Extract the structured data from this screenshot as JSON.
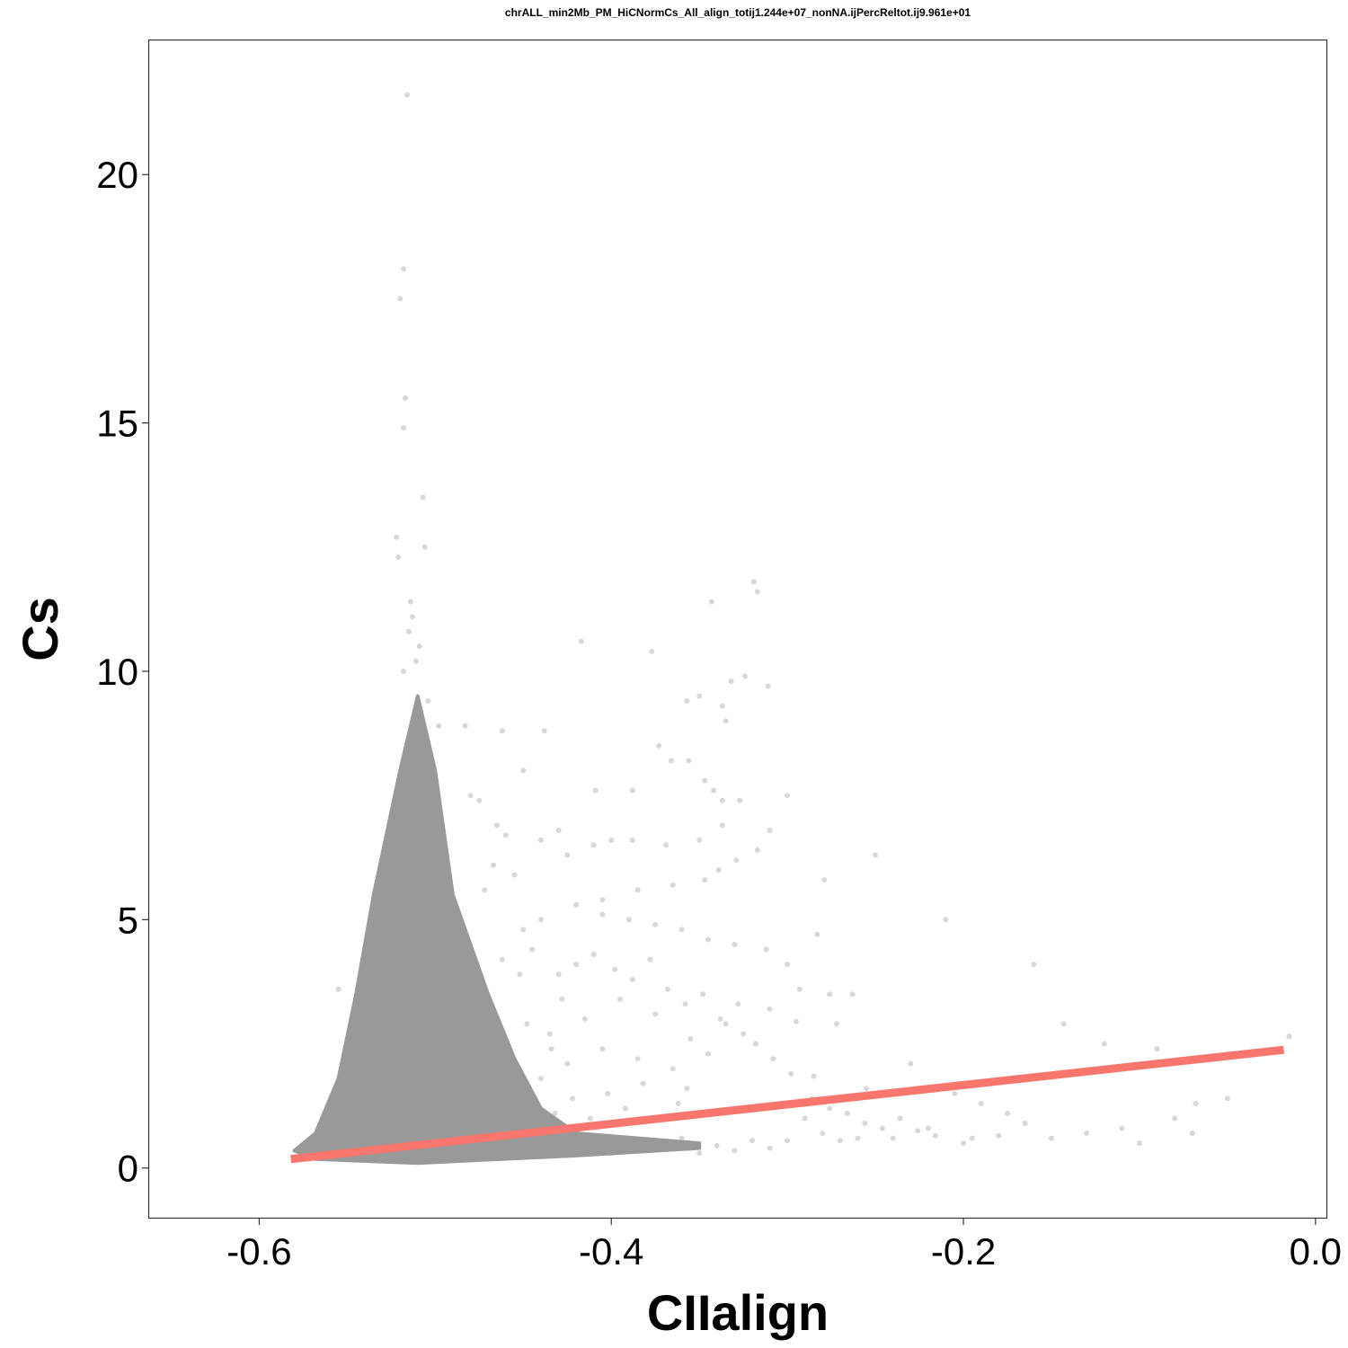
{
  "chart_data": {
    "type": "scatter",
    "title": "chrALL_min2Mb_PM_HiCNormCs_All_align_totij1.244e+07_nonNA.ijPercReltot.ij9.961e+01",
    "xlabel": "CIIalign",
    "ylabel": "Cs",
    "xlim": [
      -0.6625,
      0.0062
    ],
    "ylim": [
      -1.0,
      22.7
    ],
    "x_ticks": [
      -0.6,
      -0.4,
      -0.2,
      0.0
    ],
    "x_tick_labels": [
      "-0.6",
      "-0.4",
      "-0.2",
      "0.0"
    ],
    "y_ticks": [
      0,
      5,
      10,
      15,
      20
    ],
    "y_tick_labels": [
      "0",
      "5",
      "10",
      "15",
      "20"
    ],
    "grid": false,
    "legend": "none",
    "point_color": "#999999",
    "line_color": "#F8766D",
    "dense_cluster": {
      "x_center": -0.51,
      "outline": [
        [
          -0.568,
          0.18
        ],
        [
          -0.51,
          0.1
        ],
        [
          -0.42,
          0.25
        ],
        [
          -0.35,
          0.4
        ],
        [
          -0.35,
          0.5
        ],
        [
          -0.42,
          0.7
        ],
        [
          -0.44,
          1.2
        ],
        [
          -0.455,
          2.2
        ],
        [
          -0.47,
          3.5
        ],
        [
          -0.49,
          5.5
        ],
        [
          -0.5,
          8.0
        ],
        [
          -0.51,
          9.5
        ],
        [
          -0.52,
          8.0
        ],
        [
          -0.535,
          5.5
        ],
        [
          -0.545,
          3.5
        ],
        [
          -0.555,
          1.8
        ],
        [
          -0.568,
          0.7
        ],
        [
          -0.58,
          0.35
        ]
      ]
    },
    "series": [
      {
        "type": "scatter",
        "points": [
          [
            -0.516,
            21.6
          ],
          [
            -0.518,
            18.1
          ],
          [
            -0.52,
            17.5
          ],
          [
            -0.517,
            15.5
          ],
          [
            -0.518,
            14.9
          ],
          [
            -0.507,
            13.5
          ],
          [
            -0.522,
            12.7
          ],
          [
            -0.521,
            12.3
          ],
          [
            -0.506,
            12.5
          ],
          [
            -0.514,
            11.4
          ],
          [
            -0.513,
            11.1
          ],
          [
            -0.515,
            10.8
          ],
          [
            -0.509,
            10.5
          ],
          [
            -0.511,
            10.2
          ],
          [
            -0.518,
            10.0
          ],
          [
            -0.504,
            9.4
          ],
          [
            -0.498,
            8.9
          ],
          [
            -0.483,
            8.9
          ],
          [
            -0.462,
            8.8
          ],
          [
            -0.438,
            8.8
          ],
          [
            -0.45,
            8.0
          ],
          [
            -0.48,
            7.5
          ],
          [
            -0.475,
            7.4
          ],
          [
            -0.465,
            6.9
          ],
          [
            -0.46,
            6.7
          ],
          [
            -0.44,
            6.6
          ],
          [
            -0.43,
            6.8
          ],
          [
            -0.417,
            10.6
          ],
          [
            -0.377,
            10.4
          ],
          [
            -0.343,
            11.4
          ],
          [
            -0.319,
            11.8
          ],
          [
            -0.317,
            11.6
          ],
          [
            -0.311,
            9.7
          ],
          [
            -0.324,
            9.9
          ],
          [
            -0.332,
            9.8
          ],
          [
            -0.35,
            9.5
          ],
          [
            -0.337,
            9.3
          ],
          [
            -0.335,
            9.0
          ],
          [
            -0.357,
            9.4
          ],
          [
            -0.373,
            8.5
          ],
          [
            -0.366,
            8.2
          ],
          [
            -0.356,
            8.2
          ],
          [
            -0.347,
            7.8
          ],
          [
            -0.342,
            7.6
          ],
          [
            -0.337,
            7.4
          ],
          [
            -0.327,
            7.4
          ],
          [
            -0.337,
            6.9
          ],
          [
            -0.35,
            6.6
          ],
          [
            -0.369,
            6.5
          ],
          [
            -0.388,
            6.6
          ],
          [
            -0.4,
            6.6
          ],
          [
            -0.41,
            6.5
          ],
          [
            -0.425,
            6.3
          ],
          [
            -0.409,
            7.6
          ],
          [
            -0.388,
            7.6
          ],
          [
            -0.3,
            7.5
          ],
          [
            -0.31,
            6.8
          ],
          [
            -0.317,
            6.4
          ],
          [
            -0.329,
            6.2
          ],
          [
            -0.339,
            6.0
          ],
          [
            -0.347,
            5.8
          ],
          [
            -0.365,
            5.7
          ],
          [
            -0.385,
            5.6
          ],
          [
            -0.405,
            5.4
          ],
          [
            -0.42,
            5.3
          ],
          [
            -0.44,
            5.0
          ],
          [
            -0.45,
            4.8
          ],
          [
            -0.405,
            5.1
          ],
          [
            -0.39,
            5.0
          ],
          [
            -0.375,
            4.9
          ],
          [
            -0.36,
            4.8
          ],
          [
            -0.345,
            4.6
          ],
          [
            -0.33,
            4.5
          ],
          [
            -0.312,
            4.4
          ],
          [
            -0.3,
            4.1
          ],
          [
            -0.293,
            3.6
          ],
          [
            -0.283,
            4.7
          ],
          [
            -0.276,
            3.5
          ],
          [
            -0.272,
            2.9
          ],
          [
            -0.263,
            3.5
          ],
          [
            -0.279,
            5.8
          ],
          [
            -0.25,
            6.3
          ],
          [
            -0.21,
            5.0
          ],
          [
            -0.16,
            4.1
          ],
          [
            -0.143,
            2.9
          ],
          [
            -0.12,
            2.5
          ],
          [
            -0.09,
            2.4
          ],
          [
            -0.068,
            1.3
          ],
          [
            -0.07,
            0.7
          ],
          [
            -0.08,
            1.0
          ],
          [
            -0.1,
            0.5
          ],
          [
            -0.11,
            0.8
          ],
          [
            -0.13,
            0.7
          ],
          [
            -0.15,
            0.6
          ],
          [
            -0.165,
            0.9
          ],
          [
            -0.18,
            0.65
          ],
          [
            -0.195,
            0.6
          ],
          [
            -0.2,
            0.5
          ],
          [
            -0.22,
            0.8
          ],
          [
            -0.24,
            0.6
          ],
          [
            -0.26,
            0.6
          ],
          [
            -0.27,
            0.55
          ],
          [
            -0.28,
            0.7
          ],
          [
            -0.29,
            1.0
          ],
          [
            -0.3,
            0.55
          ],
          [
            -0.31,
            0.4
          ],
          [
            -0.32,
            0.55
          ],
          [
            -0.33,
            0.35
          ],
          [
            -0.34,
            0.45
          ],
          [
            -0.35,
            0.3
          ],
          [
            -0.36,
            0.6
          ],
          [
            -0.37,
            0.5
          ],
          [
            -0.38,
            0.35
          ],
          [
            -0.39,
            0.45
          ],
          [
            -0.4,
            0.3
          ],
          [
            -0.41,
            0.55
          ],
          [
            -0.42,
            0.4
          ],
          [
            -0.43,
            0.3
          ],
          [
            -0.015,
            2.65
          ],
          [
            -0.05,
            1.4
          ],
          [
            -0.175,
            1.1
          ],
          [
            -0.19,
            1.3
          ],
          [
            -0.205,
            1.5
          ],
          [
            -0.23,
            2.1
          ],
          [
            -0.255,
            1.6
          ],
          [
            -0.285,
            1.85
          ],
          [
            -0.295,
            2.95
          ],
          [
            -0.31,
            3.2
          ],
          [
            -0.325,
            2.7
          ],
          [
            -0.335,
            2.9
          ],
          [
            -0.345,
            2.3
          ],
          [
            -0.355,
            2.6
          ],
          [
            -0.365,
            2.0
          ],
          [
            -0.375,
            3.1
          ],
          [
            -0.385,
            2.2
          ],
          [
            -0.395,
            3.4
          ],
          [
            -0.405,
            2.4
          ],
          [
            -0.415,
            3.0
          ],
          [
            -0.425,
            2.1
          ],
          [
            -0.435,
            2.7
          ],
          [
            -0.44,
            1.8
          ],
          [
            -0.43,
            3.9
          ],
          [
            -0.42,
            4.1
          ],
          [
            -0.41,
            4.3
          ],
          [
            -0.398,
            4.0
          ],
          [
            -0.388,
            3.8
          ],
          [
            -0.378,
            4.2
          ],
          [
            -0.368,
            3.6
          ],
          [
            -0.358,
            3.3
          ],
          [
            -0.348,
            3.5
          ],
          [
            -0.338,
            3.0
          ],
          [
            -0.328,
            3.3
          ],
          [
            -0.318,
            2.5
          ],
          [
            -0.308,
            2.2
          ],
          [
            -0.298,
            1.9
          ],
          [
            -0.286,
            1.4
          ],
          [
            -0.276,
            1.2
          ],
          [
            -0.266,
            1.1
          ],
          [
            -0.256,
            0.9
          ],
          [
            -0.246,
            0.8
          ],
          [
            -0.236,
            1.0
          ],
          [
            -0.226,
            0.75
          ],
          [
            -0.216,
            0.65
          ],
          [
            -0.555,
            3.6
          ],
          [
            -0.545,
            2.2
          ],
          [
            -0.55,
            2.6
          ],
          [
            -0.455,
            5.9
          ],
          [
            -0.467,
            6.1
          ],
          [
            -0.472,
            5.6
          ],
          [
            -0.445,
            4.4
          ],
          [
            -0.452,
            3.9
          ],
          [
            -0.462,
            4.2
          ],
          [
            -0.428,
            3.4
          ],
          [
            -0.434,
            2.4
          ],
          [
            -0.448,
            2.9
          ],
          [
            -0.357,
            1.6
          ],
          [
            -0.362,
            1.3
          ],
          [
            -0.372,
            1.0
          ],
          [
            -0.382,
            1.7
          ],
          [
            -0.392,
            1.2
          ],
          [
            -0.402,
            1.5
          ],
          [
            -0.412,
            1.0
          ],
          [
            -0.422,
            1.4
          ],
          [
            -0.432,
            1.1
          ],
          [
            -0.442,
            1.3
          ]
        ]
      },
      {
        "type": "line",
        "points": [
          [
            -0.582,
            0.18
          ],
          [
            -0.018,
            2.38
          ]
        ]
      }
    ]
  }
}
